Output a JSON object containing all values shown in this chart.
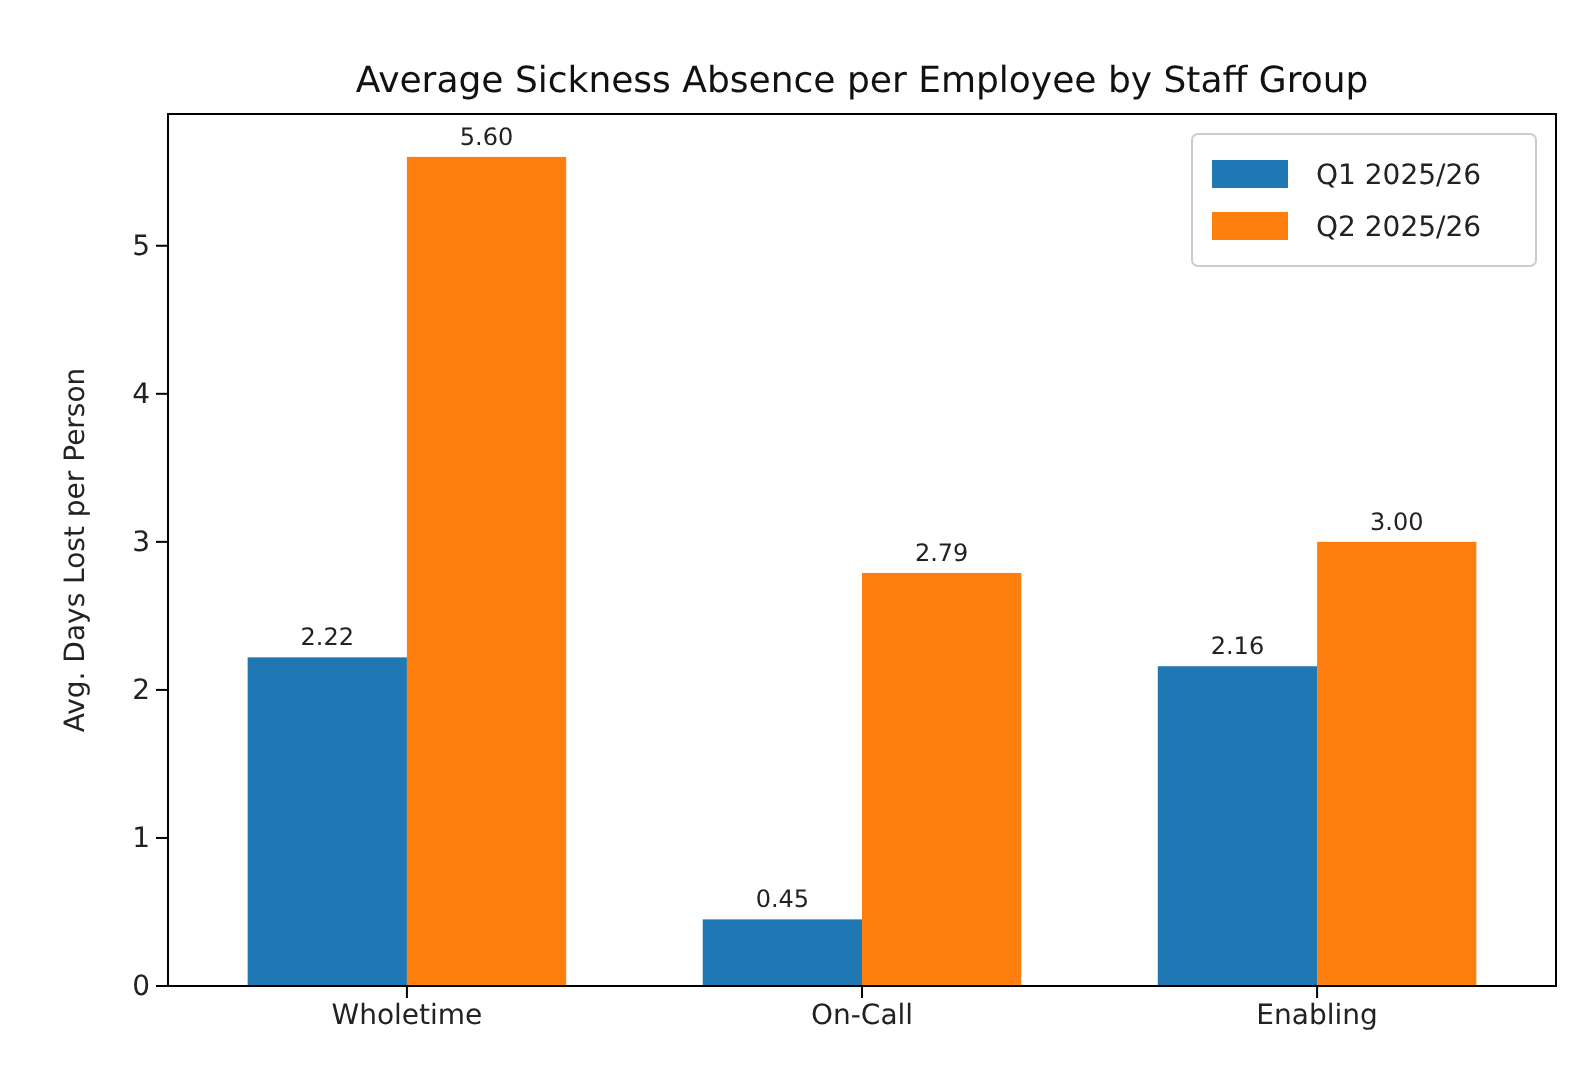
{
  "chart_data": {
    "type": "bar",
    "title": "Average Sickness Absence per Employee by Staff Group",
    "ylabel": "Avg. Days Lost per Person",
    "categories": [
      "Wholetime",
      "On-Call",
      "Enabling"
    ],
    "series": [
      {
        "name": "Q1 2025/26",
        "color": "#1f77b4",
        "values": [
          2.22,
          0.45,
          2.16
        ],
        "value_labels": [
          "2.22",
          "0.45",
          "2.16"
        ]
      },
      {
        "name": "Q2 2025/26",
        "color": "#ff7f0e",
        "values": [
          5.6,
          2.79,
          3.0
        ],
        "value_labels": [
          "5.60",
          "2.79",
          "3.00"
        ]
      }
    ],
    "ylim": [
      0,
      5.89
    ],
    "yticks": [
      0,
      1,
      2,
      3,
      4,
      5
    ],
    "grid": false,
    "legend": "top right"
  }
}
